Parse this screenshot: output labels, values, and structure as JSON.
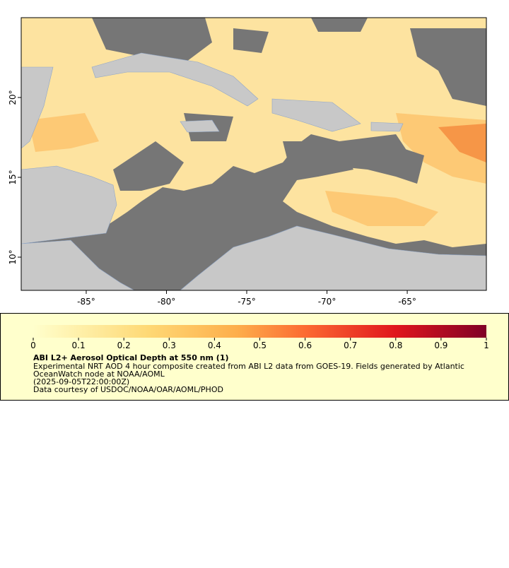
{
  "map": {
    "lon_range": [
      -89.05,
      -60.07
    ],
    "lat_range": [
      7.92,
      25
    ],
    "lon_ticks": [
      {
        "value": -85,
        "label": "-85°"
      },
      {
        "value": -80,
        "label": "-80°"
      },
      {
        "value": -75,
        "label": "-75°"
      },
      {
        "value": -70,
        "label": "-70°"
      },
      {
        "value": -65,
        "label": "-65°"
      }
    ],
    "lat_ticks": [
      {
        "value": 10,
        "label": "10°"
      },
      {
        "value": 15,
        "label": "15°"
      },
      {
        "value": 20,
        "label": "20°"
      }
    ]
  },
  "legend": {
    "colorbar_range": [
      0,
      1
    ],
    "colorbar_ticks": [
      0,
      0.1,
      0.2,
      0.3,
      0.4,
      0.5,
      0.6,
      0.7,
      0.8,
      0.9,
      1
    ],
    "title": "ABI L2+ Aerosol Optical Depth at 550 nm (1)",
    "lines": [
      "Experimental NRT AOD 4 hour composite created from ABI L2 data from GOES-19. Fields generated by Atlantic",
      "OceanWatch node at NOAA/AOML",
      "(2025-09-05T22:00:00Z)",
      "Data courtesy of USDOC/NOAA/OAR/AOML/PHOD"
    ]
  }
}
